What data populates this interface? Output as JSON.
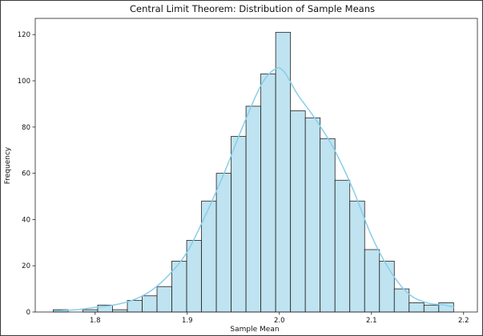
{
  "chart_data": {
    "type": "bar",
    "title": "Central Limit Theorem: Distribution of Sample Means",
    "xlabel": "Sample Mean",
    "ylabel": "Frequency",
    "xlim": [
      1.735,
      2.215
    ],
    "ylim": [
      0,
      127
    ],
    "xticks": [
      1.8,
      1.9,
      2.0,
      2.1,
      2.2
    ],
    "xtick_labels": [
      "1.8",
      "1.9",
      "2.0",
      "2.1",
      "2.2"
    ],
    "yticks": [
      0,
      20,
      40,
      60,
      80,
      100,
      120
    ],
    "ytick_labels": [
      "0",
      "20",
      "40",
      "60",
      "80",
      "100",
      "120"
    ],
    "bin_edges": [
      1.7545,
      1.7706,
      1.7867,
      1.8028,
      1.8189,
      1.835,
      1.8511,
      1.8672,
      1.8833,
      1.8994,
      1.9155,
      1.9316,
      1.9477,
      1.9638,
      1.9799,
      1.996,
      2.0121,
      2.0282,
      2.0443,
      2.0604,
      2.0765,
      2.0926,
      2.1087,
      2.1248,
      2.1409,
      2.157,
      2.1731,
      2.1892
    ],
    "values": [
      1,
      0,
      1,
      3,
      1,
      5,
      7,
      11,
      22,
      31,
      48,
      60,
      76,
      89,
      103,
      121,
      87,
      84,
      75,
      57,
      48,
      27,
      22,
      10,
      4,
      3,
      4
    ],
    "kde": {
      "x": [
        1.755,
        1.78,
        1.8,
        1.82,
        1.84,
        1.86,
        1.88,
        1.9,
        1.92,
        1.94,
        1.96,
        1.98,
        1.995,
        2.005,
        2.02,
        2.04,
        2.06,
        2.08,
        2.1,
        2.12,
        2.14,
        2.16,
        2.18,
        2.19
      ],
      "y": [
        0.5,
        1,
        2,
        3,
        5,
        9,
        16,
        26,
        42,
        60,
        80,
        98,
        105,
        104,
        94,
        83,
        70,
        53,
        33,
        18,
        8,
        4,
        3,
        2
      ]
    },
    "bar_color": "#bfe3f0",
    "bar_edge_color": "#222222",
    "kde_color": "#87ceeb",
    "grid": false
  }
}
